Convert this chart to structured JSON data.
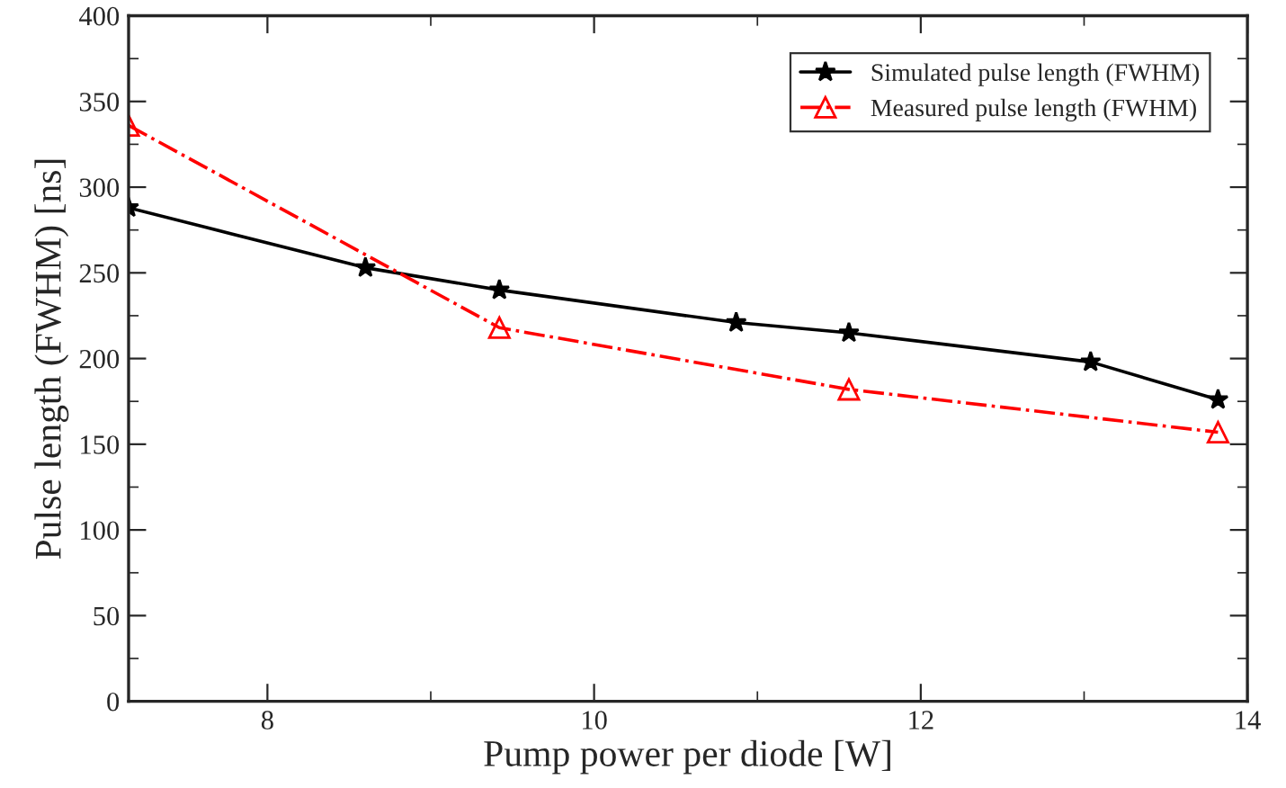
{
  "chart_data": {
    "type": "line",
    "xlabel": "Pump power per diode [W]",
    "ylabel": "Pulse length (FWHM) [ns]",
    "xlim": [
      7.15,
      14
    ],
    "xticks": [
      8,
      10,
      12,
      14
    ],
    "ylim": [
      0,
      400
    ],
    "yticks": [
      0,
      50,
      100,
      150,
      200,
      250,
      300,
      350,
      400
    ],
    "grid": false,
    "legend": "top right",
    "series": [
      {
        "name": "Simulated pulse length (FWHM)",
        "color": "#000000",
        "marker": "star",
        "line_style": "solid",
        "x": [
          7.15,
          8.6,
          9.42,
          10.87,
          11.56,
          13.04,
          13.82
        ],
        "values": [
          288,
          253,
          240,
          221,
          215,
          198,
          176
        ]
      },
      {
        "name": "Measured pulse length (FWHM)",
        "color": "#ff0000",
        "marker": "triangle",
        "line_style": "dashdot",
        "x": [
          7.15,
          9.42,
          11.56,
          13.82
        ],
        "values": [
          336,
          218,
          182,
          157
        ]
      }
    ]
  }
}
